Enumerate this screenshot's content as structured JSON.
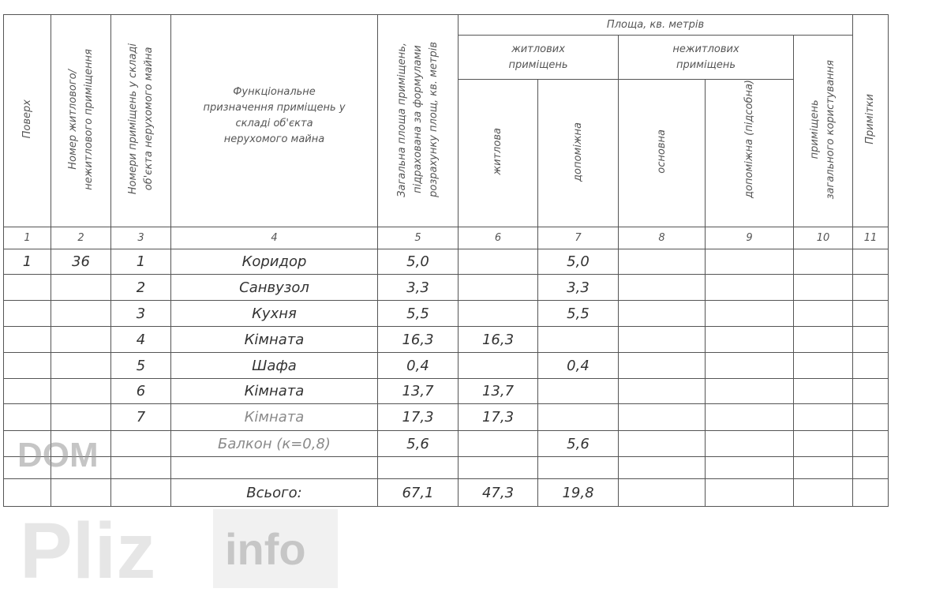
{
  "header": {
    "floor": "Поверх",
    "unit_number": "Номер житлового/\nнежитлового приміщення",
    "room_numbers": "Номери приміщень у складі\nоб'єкта нерухомого майна",
    "purpose": "Функціональне\nпризначення приміщень у\nскладі об'єкта\nнерухомого майна",
    "total_area": "Загальна площа приміщень,\nпідрахована за формулами\nрозрахунку площ, кв. метрів",
    "area_group": "Площа, кв. метрів",
    "residential": "житлових\nприміщень",
    "non_residential": "нежитлових\nприміщень",
    "common_use": "приміщень\nзагального користування",
    "living": "житлова",
    "auxiliary": "допоміжна",
    "main": "основна",
    "auxiliary_utility": "допоміжна (підсобна)",
    "notes": "Примітки"
  },
  "column_numbers": [
    "1",
    "2",
    "3",
    "4",
    "5",
    "6",
    "7",
    "8",
    "9",
    "10",
    "11"
  ],
  "rows": [
    {
      "floor": "1",
      "unit": "36",
      "no": "1",
      "purpose": "Коридор",
      "total": "5,0",
      "living": "",
      "aux": "5,0"
    },
    {
      "floor": "",
      "unit": "",
      "no": "2",
      "purpose": "Санвузол",
      "total": "3,3",
      "living": "",
      "aux": "3,3"
    },
    {
      "floor": "",
      "unit": "",
      "no": "3",
      "purpose": "Кухня",
      "total": "5,5",
      "living": "",
      "aux": "5,5"
    },
    {
      "floor": "",
      "unit": "",
      "no": "4",
      "purpose": "Кімната",
      "total": "16,3",
      "living": "16,3",
      "aux": ""
    },
    {
      "floor": "",
      "unit": "",
      "no": "5",
      "purpose": "Шафа",
      "total": "0,4",
      "living": "",
      "aux": "0,4"
    },
    {
      "floor": "",
      "unit": "",
      "no": "6",
      "purpose": "Кімната",
      "total": "13,7",
      "living": "13,7",
      "aux": ""
    },
    {
      "floor": "",
      "unit": "",
      "no": "7",
      "purpose": "Кімната",
      "total": "17,3",
      "living": "17,3",
      "aux": ""
    },
    {
      "floor": "",
      "unit": "",
      "no": "",
      "purpose": "Балкон (к=0,8)",
      "total": "5,6",
      "living": "",
      "aux": "5,6"
    },
    {
      "floor": "",
      "unit": "",
      "no": "",
      "purpose": "",
      "total": "",
      "living": "",
      "aux": ""
    }
  ],
  "totals": {
    "label": "Всього:",
    "total": "67,1",
    "living": "47,3",
    "aux": "19,8"
  },
  "watermark": {
    "line1": "DOM",
    "line2": "Pliz",
    "line3": "info"
  }
}
